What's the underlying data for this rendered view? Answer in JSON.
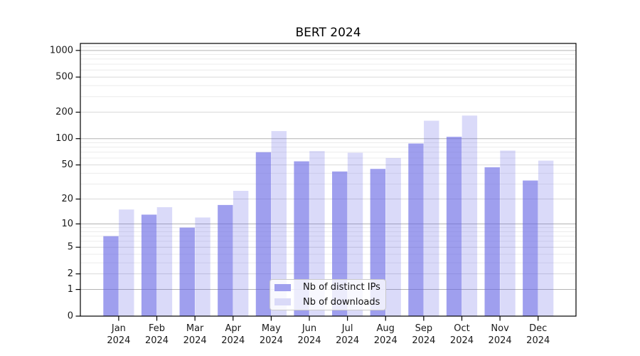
{
  "chart_data": {
    "type": "bar",
    "title": "BERT 2024",
    "categories": [
      "Jan",
      "Feb",
      "Mar",
      "Apr",
      "May",
      "Jun",
      "Jul",
      "Aug",
      "Sep",
      "Oct",
      "Nov",
      "Dec"
    ],
    "year": "2024",
    "series": [
      {
        "name": "Nb of distinct IPs",
        "values": [
          7,
          13,
          9,
          17,
          70,
          55,
          42,
          45,
          88,
          105,
          47,
          33
        ],
        "fill": "rgba(100,100,228,0.62)",
        "swatch": "#9f9fee"
      },
      {
        "name": "Nb of downloads",
        "values": [
          15,
          16,
          12,
          25,
          122,
          72,
          69,
          60,
          160,
          183,
          73,
          56
        ],
        "fill": "rgba(100,100,228,0.24)",
        "swatch": "#dadaf8"
      }
    ],
    "xlabel": "",
    "ylabel": "",
    "y_axis": {
      "scale": "log1p",
      "ticks": [
        0,
        1,
        2,
        5,
        10,
        20,
        50,
        100,
        200,
        500,
        1000
      ],
      "max": 1200
    },
    "grid": {
      "major": [
        1,
        10,
        100,
        1000
      ],
      "mid": [
        2,
        5,
        20,
        50,
        200,
        500
      ],
      "minor": [
        3,
        4,
        6,
        7,
        8,
        9,
        30,
        40,
        60,
        70,
        80,
        90,
        300,
        400,
        600,
        700,
        800,
        900,
        1100
      ],
      "major_color": "#b3b3b3",
      "mid_color": "#d9d9d9",
      "minor_color": "#ececec"
    },
    "legend": {
      "position": "bottom-center-inside"
    },
    "axis_color": "#000000",
    "text_color": "#1a1a1a"
  }
}
